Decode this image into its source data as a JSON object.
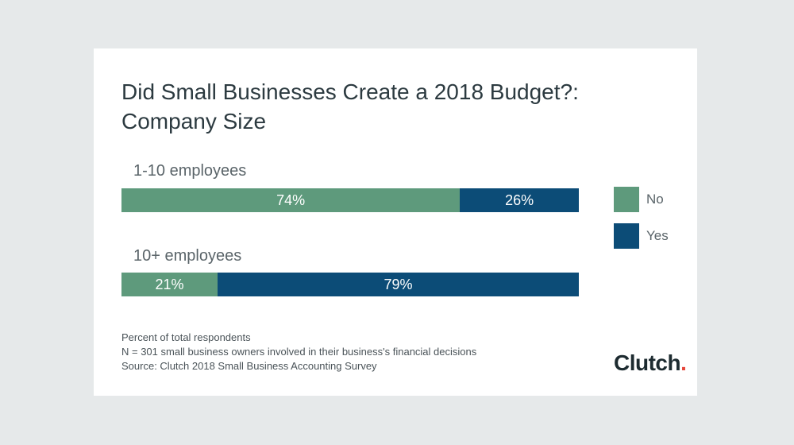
{
  "chart_data": {
    "type": "bar",
    "stacked": true,
    "orientation": "horizontal",
    "title_lines": [
      "Did Small Businesses Create a 2018 Budget?:",
      "Company Size"
    ],
    "categories": [
      "1-10 employees",
      "10+ employees"
    ],
    "series": [
      {
        "name": "No",
        "color": "#5e9a7c",
        "values": [
          74,
          21
        ],
        "labels": [
          "74%",
          "21%"
        ]
      },
      {
        "name": "Yes",
        "color": "#0c4c77",
        "values": [
          26,
          79
        ],
        "labels": [
          "26%",
          "79%"
        ]
      }
    ],
    "xlim": [
      0,
      100
    ],
    "grid": false,
    "legend_position": "right"
  },
  "footnotes": [
    "Percent of total respondents",
    "N = 301 small business owners involved in their business's financial decisions",
    "Source: Clutch 2018 Small Business Accounting Survey"
  ],
  "logo": {
    "text": "Clutch",
    "accent_color": "#e6463a"
  }
}
